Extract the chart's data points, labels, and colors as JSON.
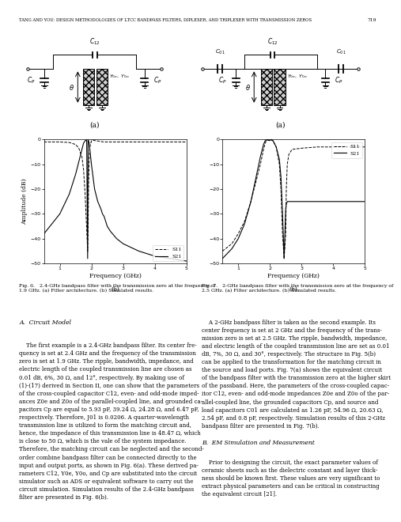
{
  "header_text": "TANG AND YOU: DESIGN METHODOLOGIES OF LTCC BANDPASS FILTERS, DIPLEXER, AND TRIPLEXER WITH TRANSMISSION ZEROS",
  "page_number": "719",
  "fig6_caption": "Fig. 6.   2.4-GHz bandpass filter with the transmission zero at the frequency of\n1.9 GHz. (a) Filter architecture. (b) Simulated results.",
  "fig7_caption": "Fig. 7.   2-GHz bandpass filter with the transmission zero at the frequency of\n2.5 GHz. (a) Filter architecture. (b) Simulated results.",
  "section_a_title": "A.  Circuit Model",
  "section_a_text": "    The first example is a 2.4-GHz bandpass filter. Its center fre-\nquency is set at 2.4 GHz and the frequency of the transmission\nzero is set at 1.9 GHz. The ripple, bandwidth, impedance, and\nelectric length of the coupled transmission line are chosen as\n0.01 dB, 6%, 30 Ω, and 12°, respectively. By making use of\n(1)-(17) derived in Section II, one can show that the parameters\nof the cross-coupled capacitor C12, even- and odd-mode imped-\nances Z0e and Z0o of the parallel-coupled line, and grounded ca-\npacitors Cp are equal to 5.93 pF, 39.24 Ω, 24.28 Ω, and 6.47 pF,\nrespectively. Therefore, J01 is 0.0206. A quarter-wavelength\ntransmission line is utilized to form the matching circuit and,\nhence, the impedance of this transmission line is 48.47 Ω, which\nis close to 50 Ω, which is the vale of the system impedance.\nTherefore, the matching circuit can be neglected and the second-\norder combine bandpass filter can be connected directly to the\ninput and output ports, as shown in Fig. 6(a). These derived pa-\nrameters C12, Y0e, Y0o, and Cp are substituted into the circuit\nsimulator such as ADS or equivalent software to carry out the\ncircuit simulation. Simulation results of the 2.4-GHz bandpass\nfilter are presented in Fig. 6(b).",
  "section_b_text": "    A 2-GHz bandpass filter is taken as the second example. Its\ncenter frequency is set at 2 GHz and the frequency of the trans-\nmission zero is set at 2.5 GHz. The ripple, bandwidth, impedance,\nand electric length of the coupled transmission line are set as 0.01\ndB, 7%, 30 Ω, and 30°, respectively. The structure in Fig. 5(b)\ncan be applied to the transformation for the matching circuit in\nthe source and load ports. Fig. 7(a) shows the equivalent circuit\nof the bandpass filter with the transmission zero at the higher skirt\nof the passband. Here, the parameters of the cross-coupled capac-\nitor C12, even- and odd-mode impedances Z0e and Z0o of the par-\nallel-coupled line, the grounded capacitors Cp, and source and\nload capacitors C01 are calculated as 1.26 pF, 54.96 Ω, 20.63 Ω,\n2.54 pF, and 0.8 pF, respectively. Simulation results of this 2-GHz\nbandpass filter are presented in Fig. 7(b).",
  "section_b_title": "B.  EM Simulation and Measurement",
  "section_b2_text": "    Prior to designing the circuit, the exact parameter values of\nceramic sheets such as the dielectric constant and layer thick-\nness should be known first. These values are very significant to\nextract physical parameters and can be critical in constructing\nthe equivalent circuit [21].",
  "plot1_freq": [
    0.5,
    1.0,
    1.3,
    1.5,
    1.6,
    1.7,
    1.75,
    1.8,
    1.85,
    1.88,
    1.895,
    1.91,
    1.93,
    1.95,
    2.0,
    2.05,
    2.1,
    2.2,
    2.3,
    2.35,
    2.4,
    2.45,
    2.5,
    2.6,
    2.8,
    3.0,
    3.5,
    4.0,
    4.5,
    5.0
  ],
  "plot1_s11": [
    -1.0,
    -1.0,
    -1.2,
    -2.0,
    -3.5,
    -7.0,
    -12.0,
    -22.0,
    -36.0,
    -45.0,
    -36.0,
    -18.0,
    -8.0,
    -3.0,
    -0.5,
    -0.3,
    -0.4,
    -0.6,
    -0.8,
    -0.9,
    -1.0,
    -1.0,
    -1.0,
    -1.0,
    -1.0,
    -1.0,
    -1.0,
    -1.0,
    -1.0,
    -1.0
  ],
  "plot1_s21": [
    -38.0,
    -30.0,
    -22.0,
    -14.0,
    -9.0,
    -4.0,
    -1.5,
    -0.5,
    -0.2,
    -48.0,
    -0.2,
    -0.5,
    -1.5,
    -4.0,
    -10.0,
    -15.0,
    -20.0,
    -25.0,
    -28.0,
    -30.0,
    -31.0,
    -33.0,
    -35.0,
    -37.0,
    -40.0,
    -42.0,
    -45.0,
    -47.0,
    -48.0,
    -49.0
  ],
  "plot2_freq": [
    0.5,
    0.8,
    1.0,
    1.2,
    1.4,
    1.6,
    1.7,
    1.8,
    1.85,
    1.9,
    1.93,
    1.95,
    2.0,
    2.02,
    2.05,
    2.1,
    2.2,
    2.3,
    2.35,
    2.4,
    2.45,
    2.5,
    2.52,
    2.55,
    2.6,
    2.7,
    3.0,
    3.5,
    4.0,
    4.5,
    5.0
  ],
  "plot2_s11": [
    -45.0,
    -42.0,
    -38.0,
    -33.0,
    -25.0,
    -15.0,
    -10.0,
    -4.0,
    -1.5,
    -0.3,
    -0.2,
    -0.3,
    -0.5,
    -0.3,
    -0.2,
    -0.5,
    -3.0,
    -10.0,
    -20.0,
    -38.0,
    -48.0,
    -38.0,
    -20.0,
    -10.0,
    -6.0,
    -4.0,
    -3.5,
    -3.0,
    -3.0,
    -3.0,
    -3.0
  ],
  "plot2_s21": [
    -48.0,
    -44.0,
    -40.0,
    -34.0,
    -25.0,
    -13.0,
    -7.0,
    -2.0,
    -0.5,
    -0.1,
    -0.1,
    -0.2,
    -0.3,
    -0.2,
    -0.1,
    -0.5,
    -3.0,
    -8.0,
    -15.0,
    -30.0,
    -48.0,
    -28.0,
    -26.0,
    -25.0,
    -25.0,
    -25.0,
    -25.0,
    -25.0,
    -25.0,
    -25.0,
    -25.0
  ],
  "ylim": [
    -50,
    0
  ],
  "xlim": [
    0.5,
    5.0
  ],
  "xlabel": "Frequency (GHz)",
  "ylabel": "Amplitude (dB)",
  "bg_color": "#ffffff",
  "text_color": "#000000"
}
